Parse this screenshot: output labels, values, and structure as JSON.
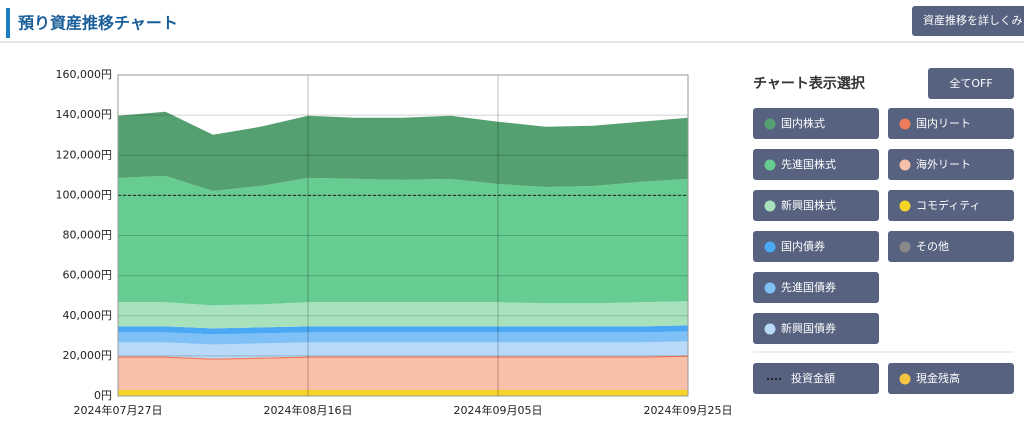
{
  "header": {
    "title": "預り資産推移チャート",
    "detail_button": "資産推移を詳しくみ"
  },
  "panel": {
    "title": "チャート表示選択",
    "all_off": "全てOFF",
    "extra_buttons": [
      {
        "name": "その他",
        "color": "#888888"
      },
      {
        "name": "現金残高",
        "color": "#f5c542"
      }
    ]
  },
  "chart_data": {
    "type": "stacked_area",
    "categories": [
      "2024年07月27日",
      null,
      null,
      null,
      "2024年08月16日",
      null,
      null,
      null,
      "2024年09月05日",
      null,
      null,
      null,
      "2024年09月25日"
    ],
    "ylim": [
      0,
      160000
    ],
    "yticks": [
      {
        "value": 0,
        "label": "0円"
      },
      {
        "value": 20000,
        "label": "20,000円"
      },
      {
        "value": 40000,
        "label": "40,000円"
      },
      {
        "value": 60000,
        "label": "60,000円"
      },
      {
        "value": 80000,
        "label": "80,000円"
      },
      {
        "value": 100000,
        "label": "100,000円"
      },
      {
        "value": 120000,
        "label": "120,000円"
      },
      {
        "value": 140000,
        "label": "140,000円"
      },
      {
        "value": 160000,
        "label": "160,000円"
      }
    ],
    "grid": true,
    "series": [
      {
        "name": "コモディティ",
        "color": "#f5d327",
        "values": [
          3000,
          3000,
          3000,
          3000,
          3000,
          3000,
          3000,
          3000,
          3000,
          3000,
          3000,
          3000,
          3000
        ]
      },
      {
        "name": "海外リート",
        "color": "#f8bfa9",
        "values": [
          16000,
          16000,
          15000,
          15500,
          16000,
          16000,
          16000,
          16000,
          16000,
          16000,
          16000,
          16000,
          16500
        ]
      },
      {
        "name": "国内リート",
        "color": "#f07b5a",
        "values": [
          700,
          700,
          700,
          700,
          700,
          700,
          700,
          700,
          700,
          700,
          700,
          700,
          700
        ]
      },
      {
        "name": "新興国債券",
        "color": "#b8d9f7",
        "values": [
          7000,
          7000,
          7000,
          7000,
          7000,
          7000,
          7000,
          7000,
          7000,
          7000,
          7000,
          7000,
          7000
        ]
      },
      {
        "name": "先進国債券",
        "color": "#7fc0f7",
        "values": [
          5000,
          5000,
          5000,
          5000,
          5000,
          5000,
          5000,
          5000,
          5000,
          5000,
          5000,
          5000,
          5000
        ]
      },
      {
        "name": "国内債券",
        "color": "#4aa8f5",
        "values": [
          3000,
          3000,
          3000,
          3000,
          3000,
          3000,
          3000,
          3000,
          3000,
          3000,
          3000,
          3000,
          3000
        ]
      },
      {
        "name": "新興国株式",
        "color": "#a8e2bd",
        "values": [
          12000,
          12000,
          11500,
          11500,
          12000,
          12000,
          12000,
          12000,
          12000,
          11500,
          11500,
          12000,
          12000
        ]
      },
      {
        "name": "先進国株式",
        "color": "#66cc91",
        "values": [
          62000,
          63000,
          57000,
          59000,
          62000,
          61500,
          61000,
          61500,
          59000,
          58000,
          58500,
          60000,
          61000
        ]
      },
      {
        "name": "国内株式",
        "color": "#55a070",
        "values": [
          31000,
          32000,
          28000,
          29500,
          31000,
          30500,
          31000,
          31500,
          31000,
          30000,
          30000,
          30000,
          30500
        ]
      }
    ],
    "invest_line": {
      "name": "投資金額",
      "value": 100000,
      "color": "#222222"
    }
  }
}
